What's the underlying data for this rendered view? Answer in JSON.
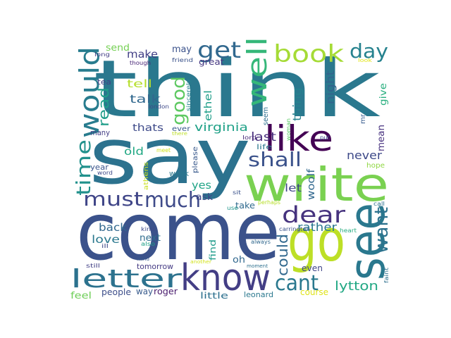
{
  "word_cloud": {
    "words": [
      {
        "text": "think",
        "color": "#2a788e"
      },
      {
        "text": "say",
        "color": "#2c728e"
      },
      {
        "text": "come",
        "color": "#3b528b"
      },
      {
        "text": "write",
        "color": "#7ad151"
      },
      {
        "text": "go",
        "color": "#bddf26"
      },
      {
        "text": "see",
        "color": "#2a788e"
      },
      {
        "text": "like",
        "color": "#440154"
      },
      {
        "text": "know",
        "color": "#433e85"
      },
      {
        "text": "letter",
        "color": "#2c728e"
      },
      {
        "text": "would",
        "color": "#287c8e"
      },
      {
        "text": "well",
        "color": "#35b779"
      },
      {
        "text": "book",
        "color": "#a5db36"
      },
      {
        "text": "dear",
        "color": "#46337e"
      },
      {
        "text": "get",
        "color": "#31688e"
      },
      {
        "text": "day",
        "color": "#26828e"
      },
      {
        "text": "shall",
        "color": "#3b528b"
      },
      {
        "text": "much",
        "color": "#3e4a89"
      },
      {
        "text": "must",
        "color": "#404688"
      },
      {
        "text": "time",
        "color": "#21918c"
      },
      {
        "text": "good",
        "color": "#5ec962"
      },
      {
        "text": "cant",
        "color": "#2a788e"
      },
      {
        "text": "want",
        "color": "#2c728e"
      },
      {
        "text": "could",
        "color": "#31688e"
      },
      {
        "text": "read",
        "color": "#1f9e89"
      },
      {
        "text": "lytton",
        "color": "#22a884"
      },
      {
        "text": "virginia",
        "color": "#1fa187"
      },
      {
        "text": "last",
        "color": "#472d7b"
      },
      {
        "text": "never",
        "color": "#3e4a89"
      },
      {
        "text": "rather",
        "color": "#2a788e"
      },
      {
        "text": "thing",
        "color": "#26828e"
      },
      {
        "text": "night",
        "color": "#33638d"
      },
      {
        "text": "talk",
        "color": "#31688e"
      },
      {
        "text": "make",
        "color": "#424086"
      },
      {
        "text": "tell",
        "color": "#b5de2b"
      },
      {
        "text": "ethel",
        "color": "#1f9e89"
      },
      {
        "text": "mean",
        "color": "#46307e"
      },
      {
        "text": "give",
        "color": "#29af7f"
      },
      {
        "text": "old",
        "color": "#22a884"
      },
      {
        "text": "thats",
        "color": "#3e4a89"
      },
      {
        "text": "yes",
        "color": "#20a486"
      },
      {
        "text": "let",
        "color": "#3f4788"
      },
      {
        "text": "woolf",
        "color": "#31688e"
      },
      {
        "text": "love",
        "color": "#2a788e"
      },
      {
        "text": "back",
        "color": "#31688e"
      },
      {
        "text": "send",
        "color": "#75d054"
      },
      {
        "text": "may",
        "color": "#3b528b"
      },
      {
        "text": "great",
        "color": "#453781"
      },
      {
        "text": "ask",
        "color": "#3f4788"
      },
      {
        "text": "oh",
        "color": "#31688e"
      },
      {
        "text": "next",
        "color": "#2f6c8e"
      },
      {
        "text": "take",
        "color": "#306a8e"
      },
      {
        "text": "find",
        "color": "#1e9b8a"
      },
      {
        "text": "even",
        "color": "#404588"
      },
      {
        "text": "course",
        "color": "#dfe318"
      },
      {
        "text": "people",
        "color": "#3d4e8a"
      },
      {
        "text": "feel",
        "color": "#6ece58"
      },
      {
        "text": "way",
        "color": "#375a8c"
      },
      {
        "text": "roger",
        "color": "#481a6c"
      },
      {
        "text": "little",
        "color": "#2d708e"
      },
      {
        "text": "leonard",
        "color": "#2a788e"
      },
      {
        "text": "tomorrow",
        "color": "#443a83"
      },
      {
        "text": "week",
        "color": "#2a778e"
      },
      {
        "text": "year",
        "color": "#3a548c"
      },
      {
        "text": "many",
        "color": "#433e85"
      },
      {
        "text": "tea",
        "color": "#424086"
      },
      {
        "text": "london",
        "color": "#3e4989"
      },
      {
        "text": "ever",
        "color": "#38588c"
      },
      {
        "text": "though",
        "color": "#482576"
      },
      {
        "text": "friend",
        "color": "#3b528b"
      },
      {
        "text": "long",
        "color": "#433e85"
      },
      {
        "text": "look",
        "color": "#e2e418"
      },
      {
        "text": "sincerely",
        "color": "#26828e"
      },
      {
        "text": "greece",
        "color": "#2a788e"
      },
      {
        "text": "lord",
        "color": "#482878"
      },
      {
        "text": "seem",
        "color": "#2e6f8e"
      },
      {
        "text": "mr",
        "color": "#375b8d"
      },
      {
        "text": "woman",
        "color": "#5ac864"
      },
      {
        "text": "put",
        "color": "#3f4889"
      },
      {
        "text": "hope",
        "color": "#90d743"
      },
      {
        "text": "life",
        "color": "#2a788e"
      },
      {
        "text": "please",
        "color": "#38598c"
      },
      {
        "text": "athens",
        "color": "#cae11f"
      },
      {
        "text": "meet",
        "color": "#d0e11c"
      },
      {
        "text": "word",
        "color": "#3e4a89"
      },
      {
        "text": "there",
        "color": "#bddf26"
      },
      {
        "text": "sit",
        "color": "#3b528b"
      },
      {
        "text": "use",
        "color": "#1f958b"
      },
      {
        "text": "perhaps",
        "color": "#b8de29"
      },
      {
        "text": "call",
        "color": "#2c718e"
      },
      {
        "text": "kind",
        "color": "#3e4a89"
      },
      {
        "text": "also",
        "color": "#1fa188"
      },
      {
        "text": "ill",
        "color": "#3e4989"
      },
      {
        "text": "always",
        "color": "#31688e"
      },
      {
        "text": "carrington",
        "color": "#3b528b"
      },
      {
        "text": "heart",
        "color": "#27ad81"
      },
      {
        "text": "faint",
        "color": "#2d708e"
      },
      {
        "text": "mind",
        "color": "#38588c"
      },
      {
        "text": "still",
        "color": "#424086"
      },
      {
        "text": "another",
        "color": "#d2e21b"
      },
      {
        "text": "moment",
        "color": "#2d708e"
      }
    ]
  }
}
